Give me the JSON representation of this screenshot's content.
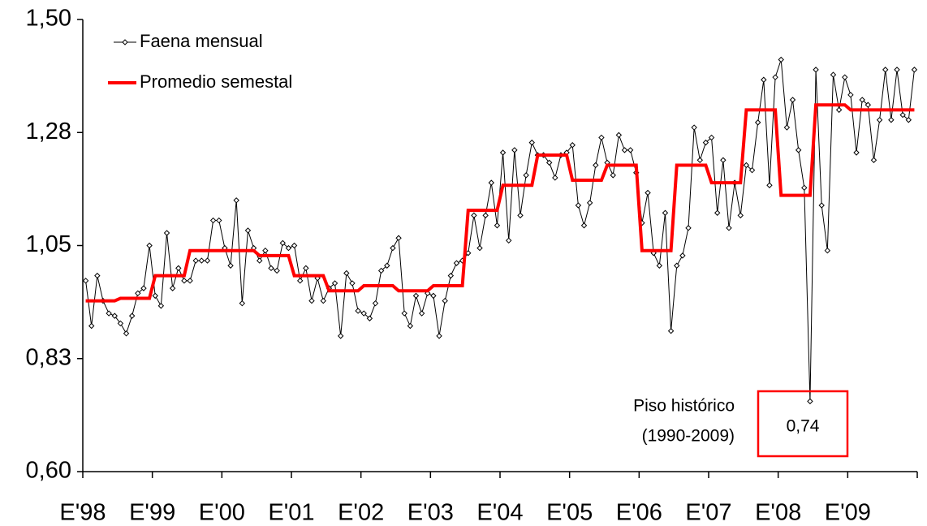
{
  "chart_data": {
    "type": "line",
    "categories": [
      "E'98",
      null,
      null,
      null,
      null,
      null,
      null,
      null,
      null,
      null,
      null,
      null,
      "E'99",
      null,
      null,
      null,
      null,
      null,
      null,
      null,
      null,
      null,
      null,
      null,
      "E'00",
      null,
      null,
      null,
      null,
      null,
      null,
      null,
      null,
      null,
      null,
      null,
      "E'01",
      null,
      null,
      null,
      null,
      null,
      null,
      null,
      null,
      null,
      null,
      null,
      "E'02",
      null,
      null,
      null,
      null,
      null,
      null,
      null,
      null,
      null,
      null,
      null,
      "E'03",
      null,
      null,
      null,
      null,
      null,
      null,
      null,
      null,
      null,
      null,
      null,
      "E'04",
      null,
      null,
      null,
      null,
      null,
      null,
      null,
      null,
      null,
      null,
      null,
      "E'05",
      null,
      null,
      null,
      null,
      null,
      null,
      null,
      null,
      null,
      null,
      null,
      "E'06",
      null,
      null,
      null,
      null,
      null,
      null,
      null,
      null,
      null,
      null,
      null,
      "E'07",
      null,
      null,
      null,
      null,
      null,
      null,
      null,
      null,
      null,
      null,
      null,
      "E'08",
      null,
      null,
      null,
      null,
      null,
      null,
      null,
      null,
      null,
      null,
      null,
      "E'09",
      null,
      null,
      null,
      null,
      null,
      null,
      null,
      null,
      null,
      null,
      null
    ],
    "series": [
      {
        "name": "Faena mensual",
        "color": "#000000",
        "values": [
          0.98,
          0.89,
          0.99,
          0.94,
          0.915,
          0.91,
          0.895,
          0.875,
          0.91,
          0.955,
          0.965,
          1.05,
          0.95,
          0.93,
          1.075,
          0.965,
          1.005,
          0.98,
          0.98,
          1.02,
          1.02,
          1.02,
          1.1,
          1.1,
          1.045,
          1.01,
          1.14,
          0.935,
          1.08,
          1.045,
          1.02,
          1.04,
          1.005,
          1.0,
          1.055,
          1.045,
          1.05,
          0.98,
          1.005,
          0.94,
          0.985,
          0.94,
          0.965,
          0.975,
          0.87,
          0.995,
          0.975,
          0.92,
          0.915,
          0.905,
          0.935,
          1.0,
          1.01,
          1.045,
          1.065,
          0.915,
          0.89,
          0.95,
          0.915,
          0.955,
          0.95,
          0.87,
          0.94,
          0.99,
          1.015,
          1.02,
          1.035,
          1.11,
          1.045,
          1.11,
          1.175,
          1.09,
          1.235,
          1.06,
          1.24,
          1.11,
          1.19,
          1.255,
          1.23,
          1.23,
          1.215,
          1.185,
          1.23,
          1.235,
          1.25,
          1.13,
          1.09,
          1.135,
          1.21,
          1.265,
          1.215,
          1.19,
          1.27,
          1.24,
          1.24,
          1.195,
          1.095,
          1.155,
          1.035,
          1.01,
          1.115,
          0.88,
          1.01,
          1.03,
          1.085,
          1.285,
          1.22,
          1.255,
          1.265,
          1.115,
          1.22,
          1.085,
          1.175,
          1.11,
          1.21,
          1.2,
          1.295,
          1.38,
          1.17,
          1.385,
          1.42,
          1.285,
          1.34,
          1.24,
          1.165,
          0.74,
          1.4,
          1.13,
          1.04,
          1.39,
          1.32,
          1.385,
          1.35,
          1.235,
          1.34,
          1.33,
          1.22,
          1.3,
          1.4,
          1.3,
          1.4,
          1.31,
          1.3,
          1.4
        ]
      },
      {
        "name": "Promedio semestal",
        "color": "#ff0000",
        "values": [
          0.94,
          0.94,
          0.94,
          0.94,
          0.94,
          0.94,
          0.945,
          0.945,
          0.945,
          0.945,
          0.945,
          0.945,
          0.99,
          0.99,
          0.99,
          0.99,
          0.99,
          0.99,
          1.04,
          1.04,
          1.04,
          1.04,
          1.04,
          1.04,
          1.04,
          1.04,
          1.04,
          1.04,
          1.04,
          1.04,
          1.03,
          1.03,
          1.03,
          1.03,
          1.03,
          1.03,
          0.99,
          0.99,
          0.99,
          0.99,
          0.99,
          0.99,
          0.96,
          0.96,
          0.96,
          0.96,
          0.96,
          0.96,
          0.97,
          0.97,
          0.97,
          0.97,
          0.97,
          0.97,
          0.96,
          0.96,
          0.96,
          0.96,
          0.96,
          0.96,
          0.97,
          0.97,
          0.97,
          0.97,
          0.97,
          0.97,
          1.12,
          1.12,
          1.12,
          1.12,
          1.12,
          1.12,
          1.17,
          1.17,
          1.17,
          1.17,
          1.17,
          1.17,
          1.23,
          1.23,
          1.23,
          1.23,
          1.23,
          1.23,
          1.18,
          1.18,
          1.18,
          1.18,
          1.18,
          1.18,
          1.21,
          1.21,
          1.21,
          1.21,
          1.21,
          1.21,
          1.04,
          1.04,
          1.04,
          1.04,
          1.04,
          1.04,
          1.21,
          1.21,
          1.21,
          1.21,
          1.21,
          1.21,
          1.175,
          1.175,
          1.175,
          1.175,
          1.175,
          1.175,
          1.32,
          1.32,
          1.32,
          1.32,
          1.32,
          1.32,
          1.15,
          1.15,
          1.15,
          1.15,
          1.15,
          1.15,
          1.33,
          1.33,
          1.33,
          1.33,
          1.33,
          1.33,
          1.32,
          1.32,
          1.32,
          1.32,
          1.32,
          1.32,
          1.32,
          1.32,
          1.32,
          1.32,
          1.32,
          1.32
        ]
      }
    ],
    "ylim": [
      0.6,
      1.5
    ],
    "yticks": [
      {
        "value": 0.6,
        "label": "0,60"
      },
      {
        "value": 0.825,
        "label": "0,83"
      },
      {
        "value": 1.05,
        "label": "1,05"
      },
      {
        "value": 1.275,
        "label": "1,28"
      },
      {
        "value": 1.5,
        "label": "1,50"
      }
    ],
    "annotation": {
      "lines": [
        "Piso histórico",
        "(1990-2009)"
      ],
      "label": "0,74"
    }
  }
}
